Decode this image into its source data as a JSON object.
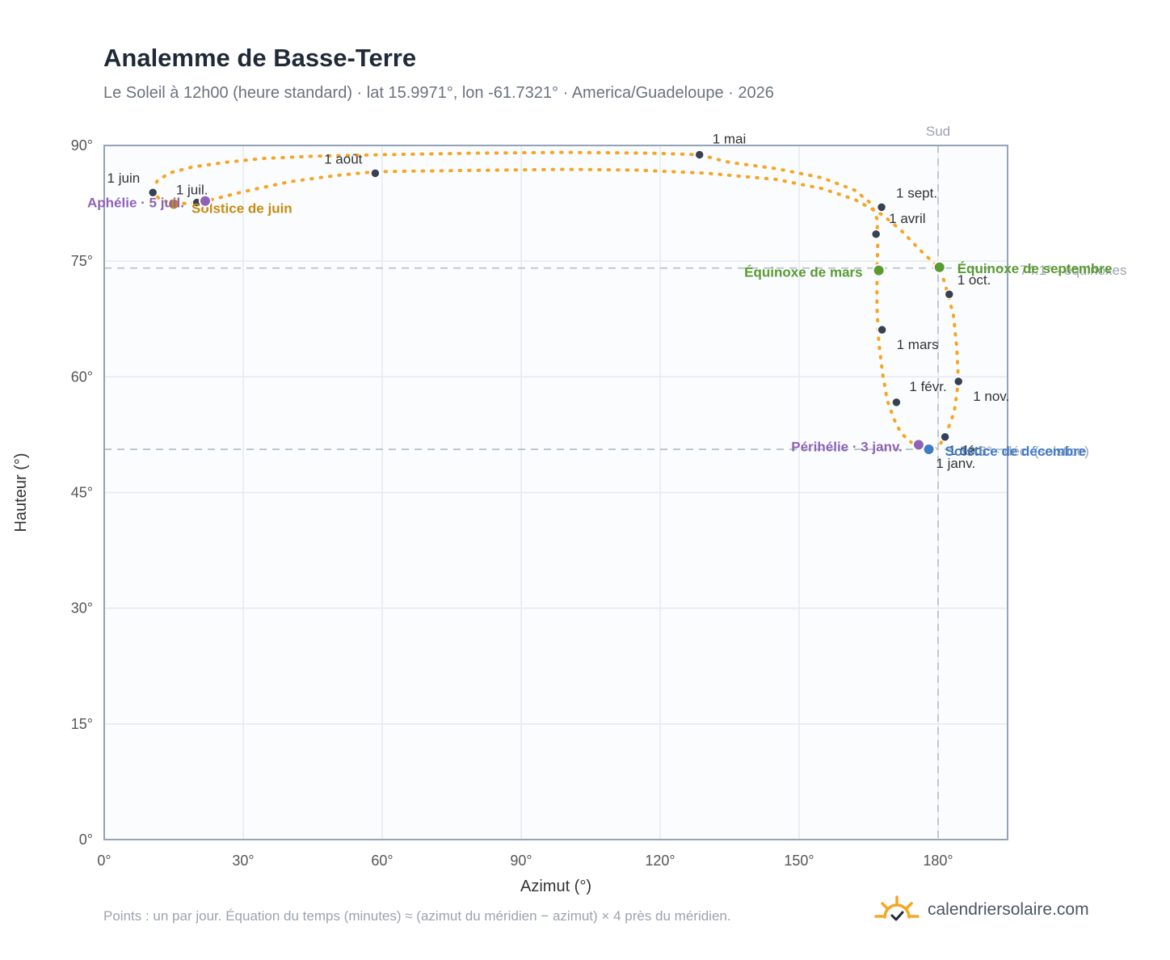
{
  "header": {
    "title": "Analemme de Basse-Terre",
    "subtitle": "Le Soleil à 12h00 (heure standard) · lat 15.9971°, lon -61.7321° · America/Guadeloupe · 2026"
  },
  "footer": {
    "note": "Points : un par jour. Équation du temps (minutes) ≈ (azimut du méridien − azimut) × 4 près du méridien.",
    "brand": "calendriersolaire.com",
    "brand_icon": "sun-check-icon"
  },
  "colors": {
    "curve": "#f5a623",
    "date_marker": "#374151",
    "equinox": "#5a9a32",
    "solstice_june": "#c88a10",
    "solstice_december": "#3f7cc7",
    "apsis": "#8e63b5",
    "reference_line": "#b8c4cc"
  },
  "chart_data": {
    "type": "scatter",
    "xlabel": "Azimut (°)",
    "ylabel": "Hauteur (°)",
    "xlim": [
      0,
      195
    ],
    "ylim": [
      0,
      90
    ],
    "xticks": [
      "0°",
      "30°",
      "60°",
      "90°",
      "120°",
      "150°",
      "180°"
    ],
    "yticks": [
      "0°",
      "15°",
      "30°",
      "45°",
      "60°",
      "75°",
      "90°"
    ],
    "grid": true,
    "meridian": {
      "label": "Sud",
      "azimuth": 180
    },
    "reference_altitudes": [
      74.1,
      50.6
    ],
    "series": [
      {
        "points": [
          [
            178.0,
            50.6
          ],
          [
            176.0,
            50.9
          ],
          [
            174.0,
            51.6
          ],
          [
            172.0,
            52.7
          ],
          [
            170.5,
            54.5
          ],
          [
            169.0,
            57.0
          ],
          [
            168.0,
            60.5
          ],
          [
            167.2,
            64.5
          ],
          [
            166.8,
            69.0
          ],
          [
            166.8,
            73.8
          ],
          [
            167.0,
            77.5
          ],
          [
            166.8,
            80.5
          ],
          [
            165.5,
            82.5
          ],
          [
            162.0,
            84.2
          ],
          [
            155.0,
            85.8
          ],
          [
            145.0,
            87.0
          ],
          [
            135.0,
            87.8
          ],
          [
            128.5,
            88.8
          ],
          [
            118.0,
            89.0
          ],
          [
            100.0,
            89.1
          ],
          [
            80.0,
            89.0
          ],
          [
            60.0,
            88.8
          ],
          [
            45.0,
            88.6
          ],
          [
            34.0,
            88.3
          ],
          [
            26.0,
            87.8
          ],
          [
            19.0,
            87.2
          ],
          [
            14.5,
            86.5
          ],
          [
            11.5,
            85.5
          ],
          [
            10.5,
            84.0
          ],
          [
            12.0,
            83.0
          ],
          [
            15.0,
            82.4
          ],
          [
            18.0,
            82.5
          ],
          [
            22.0,
            82.8
          ],
          [
            30.0,
            84.0
          ],
          [
            40.0,
            85.3
          ],
          [
            50.0,
            86.1
          ],
          [
            58.5,
            86.6
          ],
          [
            70.0,
            86.7
          ],
          [
            85.0,
            86.8
          ],
          [
            100.0,
            86.9
          ],
          [
            115.0,
            86.8
          ],
          [
            130.0,
            86.4
          ],
          [
            145.0,
            85.6
          ],
          [
            155.0,
            84.4
          ],
          [
            162.0,
            83.0
          ],
          [
            168.0,
            81.0
          ],
          [
            172.0,
            79.0
          ],
          [
            176.0,
            76.5
          ],
          [
            179.0,
            74.8
          ],
          [
            180.5,
            74.0
          ],
          [
            182.0,
            71.0
          ],
          [
            183.3,
            68.0
          ],
          [
            184.0,
            64.0
          ],
          [
            184.4,
            59.4
          ],
          [
            183.5,
            55.5
          ],
          [
            181.5,
            52.2
          ],
          [
            180.0,
            50.9
          ],
          [
            179.0,
            50.6
          ],
          [
            178.0,
            50.6
          ]
        ]
      }
    ],
    "date_markers": [
      {
        "label": "1 janv.",
        "azimuth": 178.5,
        "altitude": 50.5
      },
      {
        "label": "1 févr.",
        "azimuth": 171.0,
        "altitude": 56.7
      },
      {
        "label": "1 mars",
        "azimuth": 167.9,
        "altitude": 66.1
      },
      {
        "label": "1 avril",
        "azimuth": 166.6,
        "altitude": 78.5
      },
      {
        "label": "1 mai",
        "azimuth": 128.5,
        "altitude": 88.8
      },
      {
        "label": "1 juin",
        "azimuth": 10.5,
        "altitude": 83.9
      },
      {
        "label": "1 juil.",
        "azimuth": 20.0,
        "altitude": 82.6
      },
      {
        "label": "1 août",
        "azimuth": 58.5,
        "altitude": 86.4
      },
      {
        "label": "1 sept.",
        "azimuth": 167.8,
        "altitude": 82.0
      },
      {
        "label": "1 oct.",
        "azimuth": 182.4,
        "altitude": 70.7
      },
      {
        "label": "1 nov.",
        "azimuth": 184.4,
        "altitude": 59.4
      },
      {
        "label": "1 déc.",
        "azimuth": 181.5,
        "altitude": 52.2
      }
    ],
    "events": [
      {
        "label": "Équinoxe de mars",
        "azimuth": 167.2,
        "altitude": 73.8,
        "kind": "equinox"
      },
      {
        "label": "Équinoxe de septembre",
        "azimuth": 180.3,
        "altitude": 74.2,
        "kind": "equinox"
      },
      {
        "label": "Solstice de juin",
        "azimuth": 15.0,
        "altitude": 82.4,
        "kind": "solstice_june"
      },
      {
        "label": "Solstice de décembre",
        "azimuth": 178.0,
        "altitude": 50.6,
        "kind": "solstice_december"
      },
      {
        "label": "Aphélie · 5 juil.",
        "azimuth": 21.8,
        "altitude": 82.8,
        "kind": "apsis"
      },
      {
        "label": "Périhélie · 3 janv.",
        "azimuth": 175.8,
        "altitude": 51.2,
        "kind": "apsis"
      }
    ],
    "faint_labels": [
      "74.1° · équinoxes",
      "50.6° · déc. (solstice)"
    ]
  }
}
